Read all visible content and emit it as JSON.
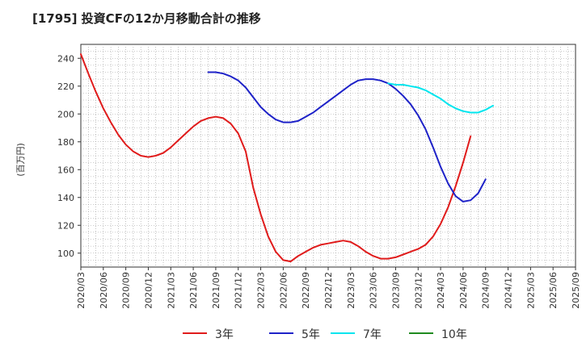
{
  "title": "[1795]  投資CFの12か月移動合計の推移",
  "chart_data": {
    "type": "line",
    "title": "[1795]  投資CFの12か月移動合計の推移",
    "xlabel": "",
    "ylabel": "(百万円)",
    "ylim": [
      90,
      250
    ],
    "yticks": [
      100,
      120,
      140,
      160,
      180,
      200,
      220,
      240
    ],
    "xticks": [
      "2020/03",
      "2020/06",
      "2020/09",
      "2020/12",
      "2021/03",
      "2021/06",
      "2021/09",
      "2021/12",
      "2022/03",
      "2022/06",
      "2022/09",
      "2022/12",
      "2023/03",
      "2023/06",
      "2023/09",
      "2023/12",
      "2024/03",
      "2024/06",
      "2024/09",
      "2024/12",
      "2025/03",
      "2025/06",
      "2025/09"
    ],
    "grid": true,
    "legend_position": "bottom",
    "series": [
      {
        "name": "3年",
        "color": "#e01b1b",
        "start": "2020/03",
        "values": [
          243,
          229,
          216,
          204,
          194,
          185,
          178,
          173,
          170,
          169,
          170,
          172,
          176,
          181,
          186,
          191,
          195,
          197,
          198,
          197,
          193,
          186,
          173,
          147,
          128,
          112,
          101,
          95,
          94,
          98,
          101,
          104,
          106,
          107,
          108,
          109,
          108,
          105,
          101,
          98,
          96,
          96,
          97,
          99,
          101,
          103,
          106,
          112,
          121,
          133,
          148,
          165,
          184
        ]
      },
      {
        "name": "5年",
        "color": "#1e22c8",
        "start": "2021/08",
        "values": [
          230,
          230,
          229,
          227,
          224,
          219,
          212,
          205,
          200,
          196,
          194,
          194,
          195,
          198,
          201,
          205,
          209,
          213,
          217,
          221,
          224,
          225,
          225,
          224,
          222,
          218,
          213,
          207,
          199,
          189,
          176,
          162,
          150,
          141,
          137,
          138,
          143,
          153
        ]
      },
      {
        "name": "7年",
        "color": "#00e5ee",
        "start": "2023/08",
        "values": [
          222,
          221,
          221,
          220,
          219,
          217,
          214,
          211,
          207,
          204,
          202,
          201,
          201,
          203,
          206
        ]
      },
      {
        "name": "10年",
        "color": "#1f8a1f",
        "start": "",
        "values": []
      }
    ]
  }
}
